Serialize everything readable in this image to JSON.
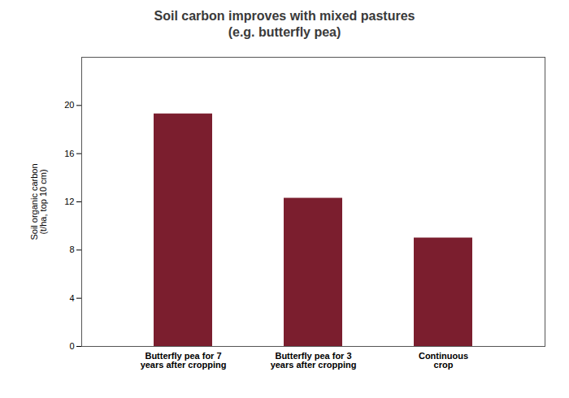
{
  "chart_data": {
    "type": "bar",
    "title": "Soil carbon improves with mixed pastures\n(e.g. butterfly pea)",
    "categories": [
      "Butterfly pea for 7\nyears after cropping",
      "Butterfly pea for 3\nyears after cropping",
      "Continuous\ncrop"
    ],
    "values": [
      19.3,
      12.3,
      9.0
    ],
    "color": "#7B1E2E",
    "ylabel": "Soil organic carbon\n(t/ha, top 10 cm)",
    "ylim": [
      0,
      24
    ],
    "yticks": [
      0,
      4,
      8,
      12,
      16,
      20
    ],
    "grid": false
  }
}
